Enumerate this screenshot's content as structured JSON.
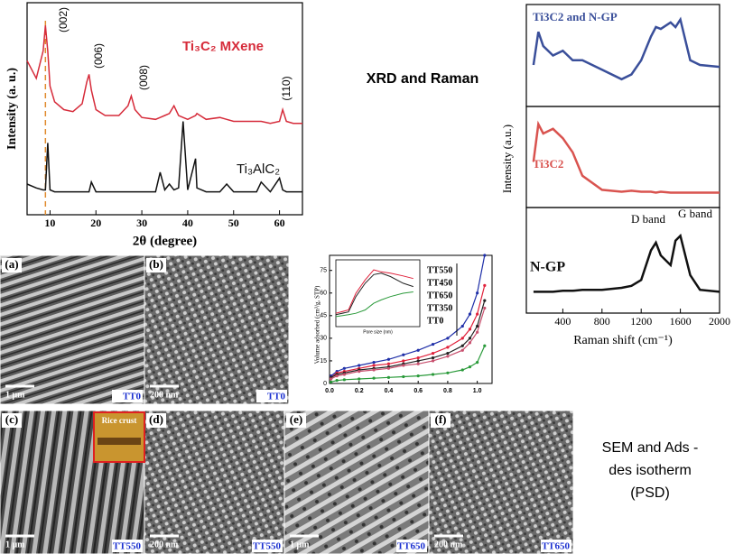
{
  "headings": {
    "xrd_raman": "XRD and Raman",
    "sem": [
      "SEM and Ads -",
      "des isotherm",
      "(PSD)"
    ]
  },
  "chart_data": [
    {
      "type": "line",
      "y_label": "Intensity (a. u.)",
      "x_label": "2θ (degree)",
      "xlim": [
        5,
        65
      ],
      "xticks": [
        10,
        20,
        30,
        40,
        50,
        60
      ],
      "ylim": [
        0,
        100
      ],
      "reference_line": 9,
      "annotations": [
        "(002)",
        "(006)",
        "(008)",
        "(110)"
      ],
      "x": [
        5,
        7,
        8.5,
        9,
        9.5,
        10,
        11,
        13,
        15,
        17,
        18,
        18.5,
        19,
        20,
        22,
        25,
        27,
        27.7,
        28.5,
        30,
        33,
        34,
        35,
        36,
        37,
        38,
        39,
        40,
        41.7,
        42,
        44,
        47,
        48.5,
        50,
        55,
        56,
        58,
        60,
        60.7,
        61.5,
        63,
        65
      ],
      "series": [
        {
          "name": "Ti₃C₂ MXene",
          "color": "#d62b3a",
          "values": [
            75,
            66,
            80,
            93,
            80,
            62,
            54,
            50,
            49,
            53,
            64,
            68,
            60,
            50,
            47,
            47,
            52,
            57,
            50,
            46,
            45,
            46,
            47,
            48,
            52,
            47,
            46,
            45,
            47,
            48,
            45,
            46,
            45,
            44,
            44,
            44,
            43,
            44,
            50,
            44,
            43,
            43
          ]
        },
        {
          "name": "Ti₃AlC₂",
          "color": "#111111",
          "values": [
            12,
            10,
            9,
            9,
            33,
            9,
            8,
            8,
            8,
            8,
            8,
            8,
            13,
            8,
            8,
            8,
            8,
            8,
            8,
            8,
            8,
            18,
            9,
            12,
            9,
            10,
            44,
            9,
            25,
            10,
            8,
            8,
            12,
            8,
            8,
            13,
            8,
            15,
            9,
            8,
            8,
            8
          ]
        }
      ]
    },
    {
      "type": "line",
      "y_label": "Intensity (a.u.)",
      "x_label": "Raman shift (cm⁻¹)",
      "xlim": [
        0,
        2000
      ],
      "xticks": [
        400,
        800,
        1200,
        1600,
        2000
      ],
      "ylim": [
        0,
        100
      ],
      "annotations": [
        "D band",
        "G band"
      ],
      "x": [
        100,
        150,
        200,
        300,
        400,
        500,
        600,
        800,
        1000,
        1100,
        1200,
        1300,
        1350,
        1400,
        1500,
        1550,
        1600,
        1700,
        1800,
        2000
      ],
      "series": [
        {
          "name": "Ti3C2 and N-GP",
          "color": "#3a4f9a",
          "values": [
            40,
            75,
            60,
            50,
            55,
            45,
            45,
            35,
            25,
            30,
            45,
            70,
            80,
            78,
            85,
            80,
            88,
            45,
            40,
            38
          ]
        },
        {
          "name": "Ti3C2",
          "color": "#d9534f",
          "values": [
            45,
            85,
            75,
            80,
            70,
            55,
            30,
            15,
            13,
            14,
            13,
            13,
            12,
            13,
            12,
            12,
            12,
            12,
            12,
            12
          ]
        },
        {
          "name": "N-GP",
          "color": "#111111",
          "values": [
            18,
            18,
            18,
            18,
            19,
            19,
            20,
            20,
            22,
            24,
            30,
            60,
            68,
            55,
            45,
            70,
            75,
            35,
            20,
            18
          ]
        }
      ]
    },
    {
      "type": "line",
      "y_label": "Volume adsorbed (cm³/g, STP)",
      "xlim": [
        0,
        1.1
      ],
      "xticks": [
        {
          "value": 0,
          "label": "0.0"
        },
        {
          "value": 0.2,
          "label": "0.2"
        },
        {
          "value": 0.4,
          "label": "0.4"
        },
        {
          "value": 0.6,
          "label": "0.6"
        },
        {
          "value": 0.8,
          "label": "0.8"
        },
        {
          "value": 1,
          "label": "1.0"
        }
      ],
      "ylim": [
        0,
        85
      ],
      "yticks": [
        0,
        15,
        30,
        45,
        60,
        75
      ],
      "x": [
        0.01,
        0.05,
        0.1,
        0.2,
        0.3,
        0.4,
        0.5,
        0.6,
        0.7,
        0.8,
        0.9,
        0.95,
        1.0,
        1.05
      ],
      "series": [
        {
          "name": "TT550",
          "color": "#1f2fa8",
          "values": [
            5,
            8,
            10,
            12,
            14,
            16,
            19,
            22,
            26,
            30,
            38,
            46,
            60,
            85
          ]
        },
        {
          "name": "TT450",
          "color": "#e0203a",
          "values": [
            4,
            7,
            8,
            10,
            12,
            13,
            15,
            17,
            20,
            24,
            30,
            36,
            46,
            65
          ]
        },
        {
          "name": "TT650",
          "color": "#222222",
          "values": [
            4,
            6,
            7,
            9,
            10,
            11,
            13,
            15,
            17,
            20,
            25,
            30,
            38,
            55
          ]
        },
        {
          "name": "TT350",
          "color": "#c8506e",
          "values": [
            3,
            5,
            6,
            8,
            9,
            10,
            12,
            13,
            15,
            18,
            22,
            27,
            34,
            50
          ]
        },
        {
          "name": "TT0",
          "color": "#2a9a3a",
          "values": [
            1,
            2,
            2.5,
            3,
            3.5,
            4,
            4.5,
            5,
            6,
            7,
            9,
            11,
            14,
            25
          ]
        }
      ]
    },
    {
      "type": "line",
      "x_label": "Pore size (nm)",
      "log_x": true,
      "xlim": [
        1,
        100
      ],
      "ylim": [
        0,
        100
      ],
      "x": [
        1,
        2,
        3,
        5,
        8,
        12,
        20,
        40,
        70
      ],
      "series": [
        {
          "color": "#e0203a",
          "values": [
            20,
            25,
            50,
            70,
            85,
            82,
            80,
            76,
            72
          ]
        },
        {
          "color": "#222222",
          "values": [
            18,
            22,
            45,
            65,
            78,
            80,
            75,
            65,
            60
          ]
        },
        {
          "color": "#2a9a3a",
          "values": [
            15,
            18,
            20,
            25,
            35,
            40,
            45,
            50,
            52
          ]
        }
      ]
    }
  ],
  "sem_panels": [
    {
      "label": "(a)",
      "scale": "1 μm",
      "sample": "TT0"
    },
    {
      "label": "(b)",
      "scale": "200 nm",
      "sample": "TT0"
    },
    {
      "label": "(c)",
      "scale": "1 μm",
      "sample": "TT550"
    },
    {
      "label": "(d)",
      "scale": "200 nm",
      "sample": "TT550"
    },
    {
      "label": "(e)",
      "scale": "1 μm",
      "sample": "TT650"
    },
    {
      "label": "(f)",
      "scale": "200 nm",
      "sample": "TT650"
    }
  ],
  "photo_label": "Rice crust"
}
